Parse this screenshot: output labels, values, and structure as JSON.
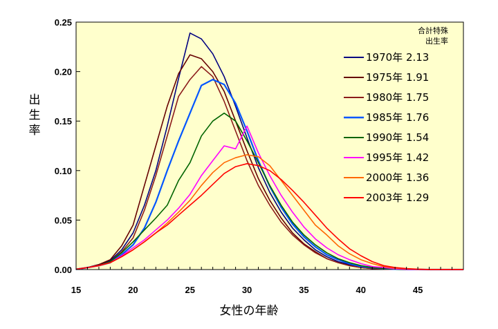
{
  "chart_data": {
    "type": "line",
    "title": "",
    "xlabel": "女性の年齢",
    "ylabel": "出生率",
    "xlim": [
      15,
      49
    ],
    "ylim": [
      0,
      0.25
    ],
    "x_ticks": [
      15,
      20,
      25,
      30,
      35,
      40,
      45
    ],
    "y_ticks": [
      "0.00",
      "0.05",
      "0.10",
      "0.15",
      "0.20",
      "0.25"
    ],
    "legend_title": [
      "合計特殊",
      "出生率"
    ],
    "legend_position": "top-right",
    "grid": false,
    "plot_background": "#ffffcc",
    "x": [
      15,
      16,
      17,
      18,
      19,
      20,
      21,
      22,
      23,
      24,
      25,
      26,
      27,
      28,
      29,
      30,
      31,
      32,
      33,
      34,
      35,
      36,
      37,
      38,
      39,
      40,
      41,
      42,
      43,
      44,
      45,
      46,
      47,
      48,
      49
    ],
    "series": [
      {
        "name": "1970年 2.13",
        "color": "#000080",
        "values": [
          0.0004,
          0.002,
          0.005,
          0.009,
          0.02,
          0.037,
          0.065,
          0.1,
          0.145,
          0.193,
          0.239,
          0.233,
          0.218,
          0.195,
          0.165,
          0.133,
          0.103,
          0.078,
          0.058,
          0.042,
          0.03,
          0.02,
          0.013,
          0.008,
          0.005,
          0.003,
          0.002,
          0.001,
          0.0005,
          0.0002,
          0.0001,
          0,
          0,
          0,
          0
        ]
      },
      {
        "name": "1975年 1.91",
        "color": "#660000",
        "values": [
          0.0004,
          0.002,
          0.005,
          0.01,
          0.024,
          0.045,
          0.085,
          0.125,
          0.165,
          0.198,
          0.217,
          0.213,
          0.2,
          0.18,
          0.15,
          0.12,
          0.092,
          0.07,
          0.052,
          0.037,
          0.026,
          0.018,
          0.011,
          0.007,
          0.004,
          0.002,
          0.001,
          0.0005,
          0.0002,
          0.0001,
          0,
          0,
          0,
          0,
          0
        ]
      },
      {
        "name": "1980年 1.75",
        "color": "#8b1a1a",
        "values": [
          0.0003,
          0.002,
          0.004,
          0.008,
          0.018,
          0.032,
          0.06,
          0.095,
          0.135,
          0.175,
          0.192,
          0.205,
          0.195,
          0.17,
          0.14,
          0.11,
          0.085,
          0.065,
          0.048,
          0.035,
          0.025,
          0.017,
          0.011,
          0.007,
          0.004,
          0.002,
          0.001,
          0.0005,
          0.0002,
          0.0001,
          0,
          0,
          0,
          0,
          0
        ]
      },
      {
        "name": "1985年 1.76",
        "color": "#0055ff",
        "values": [
          0.0003,
          0.002,
          0.004,
          0.007,
          0.015,
          0.025,
          0.042,
          0.068,
          0.1,
          0.13,
          0.158,
          0.186,
          0.192,
          0.187,
          0.168,
          0.14,
          0.11,
          0.084,
          0.063,
          0.046,
          0.033,
          0.023,
          0.015,
          0.01,
          0.006,
          0.003,
          0.002,
          0.001,
          0.0004,
          0.0002,
          0.0001,
          0,
          0,
          0,
          0
        ]
      },
      {
        "name": "1990年 1.54",
        "color": "#006400",
        "values": [
          0.0003,
          0.002,
          0.004,
          0.008,
          0.017,
          0.028,
          0.04,
          0.052,
          0.065,
          0.09,
          0.108,
          0.135,
          0.15,
          0.158,
          0.15,
          0.13,
          0.108,
          0.085,
          0.065,
          0.048,
          0.035,
          0.025,
          0.017,
          0.011,
          0.007,
          0.004,
          0.002,
          0.001,
          0.0005,
          0.0002,
          0.0001,
          0,
          0,
          0,
          0
        ]
      },
      {
        "name": "1995年 1.42",
        "color": "#ff00ff",
        "values": [
          0.0003,
          0.002,
          0.004,
          0.007,
          0.014,
          0.022,
          0.03,
          0.04,
          0.05,
          0.062,
          0.076,
          0.095,
          0.11,
          0.125,
          0.122,
          0.145,
          0.118,
          0.095,
          0.075,
          0.058,
          0.043,
          0.031,
          0.022,
          0.015,
          0.01,
          0.006,
          0.003,
          0.002,
          0.0008,
          0.0003,
          0.0001,
          0,
          0,
          0,
          0
        ]
      },
      {
        "name": "2000年 1.36",
        "color": "#ff6600",
        "values": [
          0.0003,
          0.002,
          0.004,
          0.007,
          0.013,
          0.02,
          0.028,
          0.037,
          0.047,
          0.058,
          0.07,
          0.085,
          0.098,
          0.108,
          0.113,
          0.116,
          0.114,
          0.105,
          0.09,
          0.075,
          0.06,
          0.045,
          0.035,
          0.024,
          0.016,
          0.01,
          0.006,
          0.003,
          0.0015,
          0.0007,
          0.0003,
          0.0001,
          0,
          0,
          0
        ]
      },
      {
        "name": "2003年 1.29",
        "color": "#ff0000",
        "values": [
          0.0003,
          0.002,
          0.004,
          0.007,
          0.013,
          0.02,
          0.028,
          0.037,
          0.045,
          0.055,
          0.065,
          0.075,
          0.086,
          0.097,
          0.104,
          0.107,
          0.105,
          0.1,
          0.091,
          0.08,
          0.068,
          0.055,
          0.042,
          0.031,
          0.021,
          0.014,
          0.008,
          0.004,
          0.002,
          0.001,
          0.0004,
          0.0001,
          0,
          0,
          0
        ]
      }
    ]
  }
}
